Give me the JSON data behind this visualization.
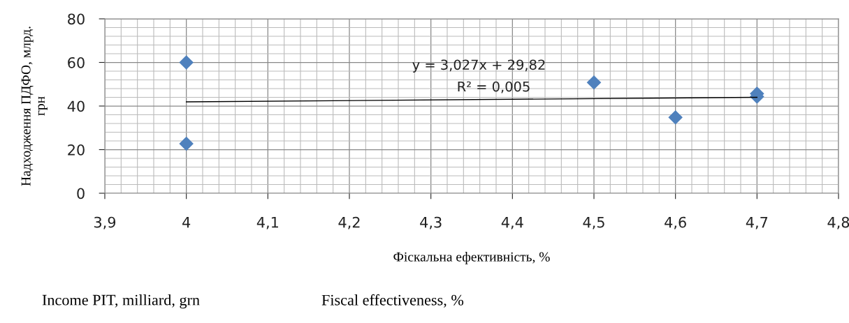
{
  "chart_data": {
    "type": "scatter",
    "xlabel": "Фіскальна ефективність, %",
    "ylabel": "Надходження ПДФО, млрд.\nгрн",
    "series": [
      {
        "color": "#4f81bd",
        "marker": "diamond",
        "x": [
          4,
          4,
          4.5,
          4.6,
          4.7,
          4.7
        ],
        "values": [
          60,
          22.7,
          50.8,
          34.8,
          45.7,
          44.3
        ]
      },
      {
        "type": "line",
        "color": "#000000",
        "marker": "none",
        "line_style": "solid",
        "x": [
          4,
          4.7
        ],
        "values": [
          41.9,
          44.0
        ]
      }
    ],
    "xlim": [
      3.9,
      4.8
    ],
    "xticks": [
      {
        "value": 3.9,
        "label": "3,9"
      },
      4,
      {
        "value": 4.1,
        "label": "4,1"
      },
      {
        "value": 4.2,
        "label": "4,2"
      },
      {
        "value": 4.3,
        "label": "4,3"
      },
      {
        "value": 4.4,
        "label": "4,4"
      },
      {
        "value": 4.5,
        "label": "4,5"
      },
      {
        "value": 4.6,
        "label": "4,6"
      },
      {
        "value": 4.7,
        "label": "4,7"
      },
      {
        "value": 4.8,
        "label": "4,8"
      }
    ],
    "ylim": [
      0,
      80
    ],
    "yticks": [
      0,
      20,
      40,
      60,
      80
    ],
    "grid": true,
    "legend": false,
    "annotations": [
      "y = 3,027x + 29,82",
      "R² = 0,005",
      "Income PIT, milliard, grn",
      "Fiscal effectiveness, %"
    ]
  }
}
